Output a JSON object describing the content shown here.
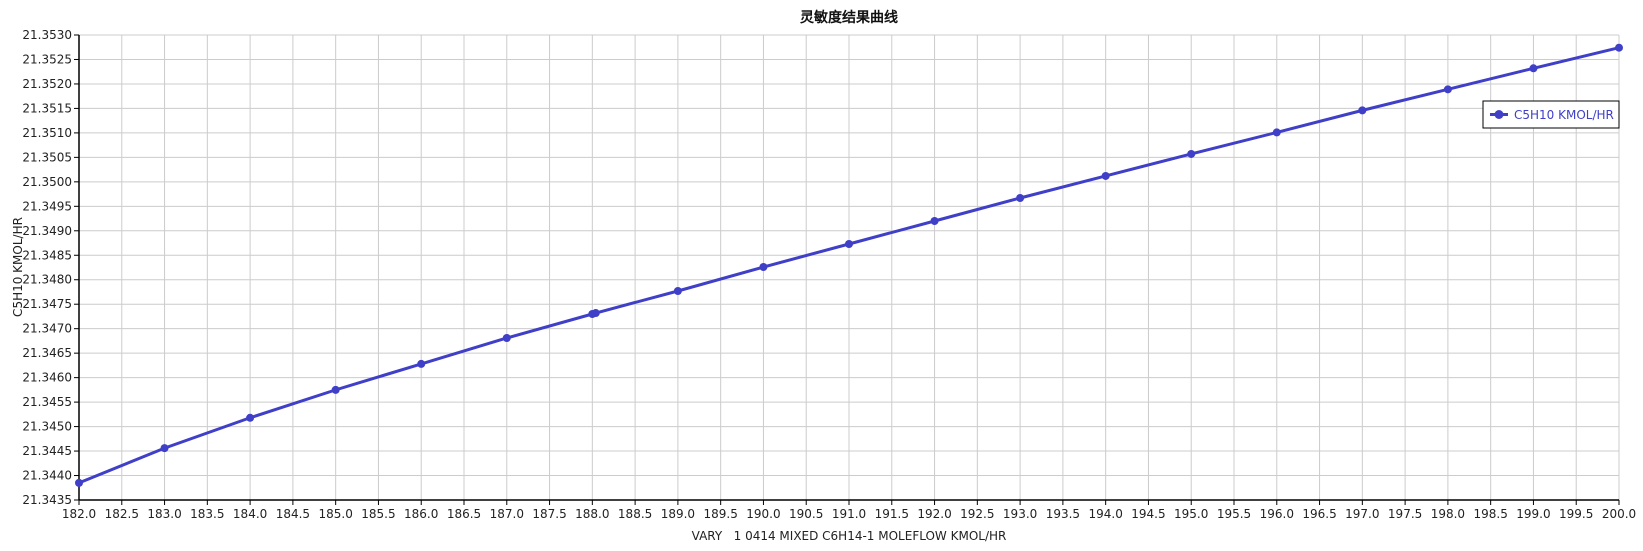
{
  "chart_data": {
    "type": "line",
    "title": "灵敏度结果曲线",
    "xlabel": "VARY   1 0414 MIXED C6H14-1 MOLEFLOW KMOL/HR",
    "ylabel": "C5H10 KMOL/HR",
    "xlim": [
      182.0,
      200.0
    ],
    "ylim": [
      21.3435,
      21.353
    ],
    "xticks": [
      "182.0",
      "182.5",
      "183.0",
      "183.5",
      "184.0",
      "184.5",
      "185.0",
      "185.5",
      "186.0",
      "186.5",
      "187.0",
      "187.5",
      "188.0",
      "188.5",
      "189.0",
      "189.5",
      "190.0",
      "190.5",
      "191.0",
      "191.5",
      "192.0",
      "192.5",
      "193.0",
      "193.5",
      "194.0",
      "194.5",
      "195.0",
      "195.5",
      "196.0",
      "196.5",
      "197.0",
      "197.5",
      "198.0",
      "198.5",
      "199.0",
      "199.5",
      "200.0"
    ],
    "yticks": [
      "21.3435",
      "21.3440",
      "21.3445",
      "21.3450",
      "21.3455",
      "21.3460",
      "21.3465",
      "21.3470",
      "21.3475",
      "21.3480",
      "21.3485",
      "21.3490",
      "21.3495",
      "21.3500",
      "21.3505",
      "21.3510",
      "21.3515",
      "21.3520",
      "21.3525",
      "21.3530"
    ],
    "grid": true,
    "legend_position": "top-right",
    "series": [
      {
        "name": "C5H10 KMOL/HR",
        "color": "#3f3fc8",
        "x": [
          182.0,
          183.0,
          184.0,
          185.0,
          186.0,
          187.0,
          188.0,
          188.04,
          189.0,
          190.0,
          191.0,
          192.0,
          193.0,
          194.0,
          195.0,
          196.0,
          197.0,
          198.0,
          199.0,
          200.0
        ],
        "y": [
          21.34385,
          21.34456,
          21.34518,
          21.34575,
          21.34628,
          21.34681,
          21.3473,
          21.34732,
          21.34777,
          21.34826,
          21.34873,
          21.3492,
          21.34967,
          21.35012,
          21.35057,
          21.35101,
          21.35146,
          21.35189,
          21.35232,
          21.35274
        ]
      }
    ]
  }
}
